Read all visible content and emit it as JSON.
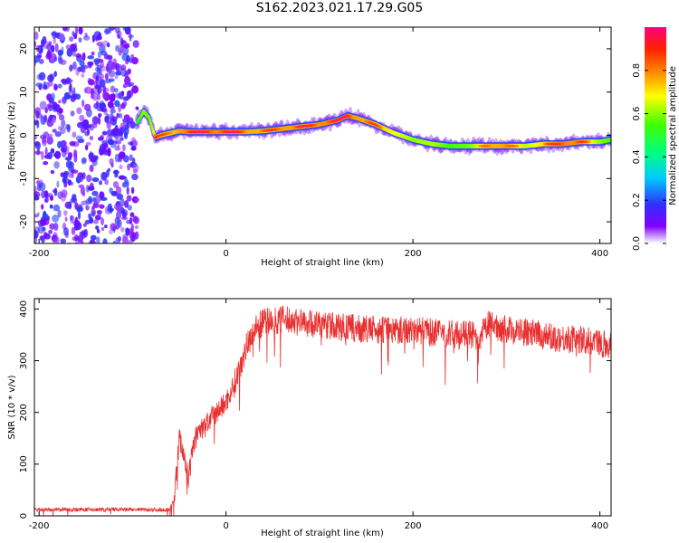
{
  "title": "S162.2023.021.17.29.G05",
  "chart_data": [
    {
      "type": "heatmap",
      "xlabel": "Height of straight line (km)",
      "ylabel": "Frequency (Hz)",
      "xlim": [
        -205,
        412
      ],
      "ylim": [
        -25,
        25
      ],
      "xticks": [
        -200,
        0,
        200,
        400
      ],
      "yticks": [
        20,
        10,
        0,
        -10,
        -20
      ],
      "colorbar": {
        "label": "Normalized spectral amplitude",
        "ticks": [
          0.0,
          0.2,
          0.4,
          0.6,
          0.8
        ],
        "range": [
          0,
          1
        ]
      },
      "noise_region": {
        "x": [
          -205,
          -95
        ],
        "y": [
          -25,
          25
        ]
      },
      "ridge": {
        "x": [
          -95,
          -88,
          -82,
          -78,
          -75,
          -70,
          -60,
          -50,
          -40,
          -20,
          0,
          20,
          40,
          60,
          80,
          100,
          120,
          130,
          140,
          160,
          180,
          200,
          220,
          240,
          260,
          280,
          300,
          320,
          340,
          360,
          380,
          400,
          412
        ],
        "y": [
          3.0,
          5.5,
          4.0,
          1.0,
          -0.5,
          0.0,
          0.5,
          1.0,
          0.8,
          0.8,
          0.8,
          0.8,
          1.0,
          1.5,
          2.0,
          2.5,
          3.5,
          4.5,
          4.0,
          2.5,
          0.5,
          -1.0,
          -2.0,
          -2.5,
          -2.5,
          -2.5,
          -2.5,
          -2.5,
          -2.0,
          -2.0,
          -1.5,
          -1.5,
          -1.0
        ],
        "amplitude": [
          0.35,
          0.55,
          0.5,
          0.6,
          0.9,
          0.8,
          0.75,
          0.85,
          0.9,
          0.9,
          0.92,
          0.85,
          0.8,
          0.85,
          0.85,
          0.88,
          0.9,
          0.92,
          0.85,
          0.8,
          0.7,
          0.55,
          0.6,
          0.45,
          0.5,
          0.8,
          0.85,
          0.6,
          0.75,
          0.9,
          0.85,
          0.55,
          0.45
        ]
      }
    },
    {
      "type": "line",
      "xlabel": "Height of straight line (km)",
      "ylabel": "SNR (10 * v/v)",
      "xlim": [
        -205,
        412
      ],
      "ylim": [
        0,
        420
      ],
      "xticks": [
        -200,
        0,
        200,
        400
      ],
      "yticks": [
        0,
        100,
        200,
        300,
        400
      ],
      "series": [
        {
          "color": "#e83030",
          "x": [
            -205,
            -150,
            -100,
            -60,
            -55,
            -50,
            -45,
            -40,
            -35,
            -30,
            -20,
            -10,
            0,
            10,
            20,
            30,
            40,
            60,
            80,
            100,
            120,
            150,
            180,
            200,
            220,
            250,
            265,
            270,
            275,
            280,
            300,
            320,
            350,
            380,
            400,
            412
          ],
          "y": [
            12,
            12,
            12,
            12,
            40,
            150,
            120,
            70,
            140,
            160,
            180,
            200,
            220,
            260,
            320,
            360,
            375,
            380,
            375,
            370,
            365,
            360,
            360,
            360,
            355,
            350,
            350,
            320,
            355,
            370,
            360,
            355,
            345,
            340,
            335,
            330
          ]
        }
      ]
    }
  ]
}
